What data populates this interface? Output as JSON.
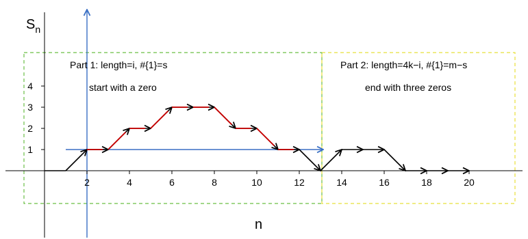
{
  "colors": {
    "axis": "#000000",
    "path": "#000000",
    "highlight": "#cc0000",
    "blue_line": "#3a6fc4",
    "part1_box": "#6abf45",
    "part2_box": "#e8e03a"
  },
  "axes": {
    "y_title": "S",
    "y_title_sub": "n",
    "x_title": "n"
  },
  "x_ticks": [
    "2",
    "4",
    "6",
    "8",
    "10",
    "12",
    "14",
    "16",
    "18",
    "20"
  ],
  "y_ticks": [
    "1",
    "2",
    "3",
    "4"
  ],
  "part1": {
    "title": "Part 1: length=i, #{1}=s",
    "subtitle": "start with a zero"
  },
  "part2": {
    "title": "Part 2: length=4k−i, #{1}=m−s",
    "subtitle": "end with three zeros"
  },
  "walk": {
    "points": [
      [
        1,
        0
      ],
      [
        2,
        1
      ],
      [
        3,
        1
      ],
      [
        4,
        2
      ],
      [
        5,
        2
      ],
      [
        6,
        3
      ],
      [
        7,
        3
      ],
      [
        8,
        3
      ],
      [
        9,
        2
      ],
      [
        10,
        2
      ],
      [
        11,
        1
      ],
      [
        12,
        1
      ],
      [
        13,
        0
      ],
      [
        14,
        1
      ],
      [
        15,
        1
      ],
      [
        16,
        1
      ],
      [
        17,
        0
      ],
      [
        18,
        0
      ],
      [
        19,
        0
      ],
      [
        20,
        0
      ]
    ],
    "highlight_from": 2,
    "highlight_to": 12
  }
}
